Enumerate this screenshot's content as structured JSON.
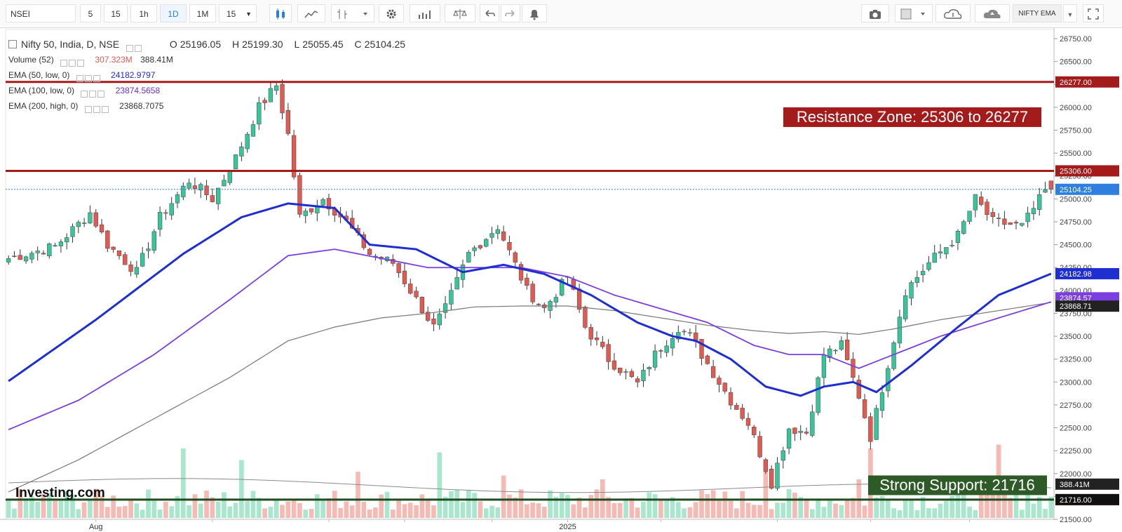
{
  "toolbar": {
    "symbol": "NSEI",
    "intervals": [
      "5",
      "15",
      "1h",
      "1D",
      "1M"
    ],
    "active_interval": "1D",
    "interval_select": "15",
    "preset": "NIFTY EMA"
  },
  "legend": {
    "title": "Nifty 50, India, D, NSE",
    "open_label": "O",
    "open": "25196.05",
    "high_label": "H",
    "high": "25199.30",
    "low_label": "L",
    "low": "25055.45",
    "close_label": "C",
    "close": "25104.25",
    "volume_label": "Volume (52)",
    "volume_1": "307.323M",
    "volume_2": "388.41M",
    "ema50_label": "EMA (50, low, 0)",
    "ema50_value": "24182.9797",
    "ema100_label": "EMA (100, low, 0)",
    "ema100_value": "23874.5658",
    "ema200_label": "EMA (200, high, 0)",
    "ema200_value": "23868.7075"
  },
  "colors": {
    "up": "#39c49a",
    "down": "#e05a52",
    "ema50": "#1f2ed1",
    "ema100": "#7b3fe0",
    "ema200": "#777777",
    "resistance": "#a31b1b",
    "support": "#1f4d1f",
    "last_price": "#2f7fe0"
  },
  "chart_data": {
    "type": "candlestick",
    "title": "Nifty 50, India, D, NSE",
    "y_axis_ticks": [
      21500,
      21750,
      22000,
      22250,
      22500,
      22750,
      23000,
      23250,
      23500,
      23750,
      24000,
      24250,
      24500,
      24750,
      25000,
      25250,
      25500,
      25750,
      26000,
      26250,
      26500,
      26750
    ],
    "ylim": [
      21500,
      26850
    ],
    "x_axis_labels": [
      {
        "bar": 15,
        "label": "Aug"
      },
      {
        "bar": 96,
        "label": "2025"
      }
    ],
    "price_path": [
      [
        0,
        24350
      ],
      [
        8,
        24480
      ],
      [
        14,
        24850
      ],
      [
        17,
        24500
      ],
      [
        22,
        24200
      ],
      [
        26,
        24800
      ],
      [
        31,
        25200
      ],
      [
        35,
        25000
      ],
      [
        39,
        25450
      ],
      [
        43,
        26000
      ],
      [
        46,
        26240
      ],
      [
        48,
        25700
      ],
      [
        50,
        24800
      ],
      [
        54,
        25000
      ],
      [
        58,
        24750
      ],
      [
        62,
        24400
      ],
      [
        66,
        24300
      ],
      [
        70,
        23900
      ],
      [
        73,
        23600
      ],
      [
        75,
        23800
      ],
      [
        79,
        24400
      ],
      [
        84,
        24700
      ],
      [
        89,
        24000
      ],
      [
        92,
        23800
      ],
      [
        96,
        24150
      ],
      [
        99,
        23600
      ],
      [
        103,
        23250
      ],
      [
        108,
        22980
      ],
      [
        111,
        23300
      ],
      [
        115,
        23600
      ],
      [
        117,
        23500
      ],
      [
        120,
        23200
      ],
      [
        124,
        22800
      ],
      [
        127,
        22550
      ],
      [
        131,
        21900
      ],
      [
        134,
        22500
      ],
      [
        137,
        22450
      ],
      [
        140,
        23300
      ],
      [
        143,
        23400
      ],
      [
        146,
        22850
      ],
      [
        148,
        22400
      ],
      [
        151,
        23200
      ],
      [
        154,
        24000
      ],
      [
        158,
        24300
      ],
      [
        163,
        24600
      ],
      [
        166,
        25000
      ],
      [
        169,
        24750
      ],
      [
        174,
        24700
      ],
      [
        179,
        25180
      ]
    ],
    "last_candle": {
      "open": 25196.05,
      "high": 25199.3,
      "low": 25055.45,
      "close": 25104.25
    },
    "ema50_end": 24182.9797,
    "ema100_end": 23874.5658,
    "ema200_end": 23868.7075,
    "ema50_path": [
      [
        0,
        23010
      ],
      [
        15,
        23680
      ],
      [
        30,
        24400
      ],
      [
        40,
        24800
      ],
      [
        48,
        24950
      ],
      [
        56,
        24900
      ],
      [
        62,
        24500
      ],
      [
        70,
        24450
      ],
      [
        78,
        24200
      ],
      [
        85,
        24280
      ],
      [
        92,
        24180
      ],
      [
        100,
        23950
      ],
      [
        108,
        23650
      ],
      [
        114,
        23500
      ],
      [
        118,
        23450
      ],
      [
        124,
        23250
      ],
      [
        130,
        22950
      ],
      [
        136,
        22850
      ],
      [
        140,
        22950
      ],
      [
        145,
        23000
      ],
      [
        149,
        22890
      ],
      [
        155,
        23180
      ],
      [
        163,
        23600
      ],
      [
        170,
        23950
      ],
      [
        179,
        24183
      ]
    ],
    "ema100_path": [
      [
        0,
        22480
      ],
      [
        12,
        22800
      ],
      [
        25,
        23300
      ],
      [
        38,
        23900
      ],
      [
        48,
        24380
      ],
      [
        56,
        24450
      ],
      [
        64,
        24350
      ],
      [
        72,
        24250
      ],
      [
        80,
        24250
      ],
      [
        88,
        24250
      ],
      [
        96,
        24150
      ],
      [
        104,
        23950
      ],
      [
        112,
        23800
      ],
      [
        120,
        23650
      ],
      [
        128,
        23400
      ],
      [
        134,
        23300
      ],
      [
        140,
        23300
      ],
      [
        146,
        23150
      ],
      [
        152,
        23300
      ],
      [
        160,
        23500
      ],
      [
        170,
        23700
      ],
      [
        179,
        23875
      ]
    ],
    "ema200_path": [
      [
        0,
        21800
      ],
      [
        12,
        22150
      ],
      [
        25,
        22600
      ],
      [
        38,
        23050
      ],
      [
        48,
        23450
      ],
      [
        56,
        23600
      ],
      [
        64,
        23700
      ],
      [
        72,
        23750
      ],
      [
        80,
        23820
      ],
      [
        88,
        23830
      ],
      [
        96,
        23830
      ],
      [
        104,
        23780
      ],
      [
        112,
        23700
      ],
      [
        120,
        23620
      ],
      [
        128,
        23560
      ],
      [
        134,
        23530
      ],
      [
        140,
        23550
      ],
      [
        146,
        23520
      ],
      [
        152,
        23580
      ],
      [
        160,
        23680
      ],
      [
        170,
        23780
      ],
      [
        179,
        23869
      ]
    ],
    "volume_highlights": [
      [
        30,
        0.9
      ],
      [
        40,
        0.75
      ],
      [
        60,
        0.6
      ],
      [
        74,
        0.85
      ],
      [
        85,
        0.55
      ],
      [
        102,
        0.5
      ],
      [
        130,
        0.6
      ],
      [
        146,
        0.5
      ],
      [
        148,
        0.9
      ],
      [
        170,
        0.95
      ],
      [
        175,
        0.55
      ]
    ],
    "volume_ma_label": "388.41M",
    "volume_last_label": "307.323M",
    "resistance_lines": [
      26277,
      25306
    ],
    "support_line": 21716,
    "resistance_labels": [
      "26277.00",
      "25306.00"
    ],
    "support_label": "21716.00",
    "last_price_label": "25104.25",
    "ema_labels": [
      "24182.98",
      "23874.57",
      "23868.71"
    ],
    "annotations": [
      {
        "text": "Resistance Zone: 25306 to 26277",
        "kind": "resistance"
      },
      {
        "text": "Strong Support: 21716",
        "kind": "support"
      }
    ],
    "watermark": "Investing.com",
    "bar_count": 180
  }
}
